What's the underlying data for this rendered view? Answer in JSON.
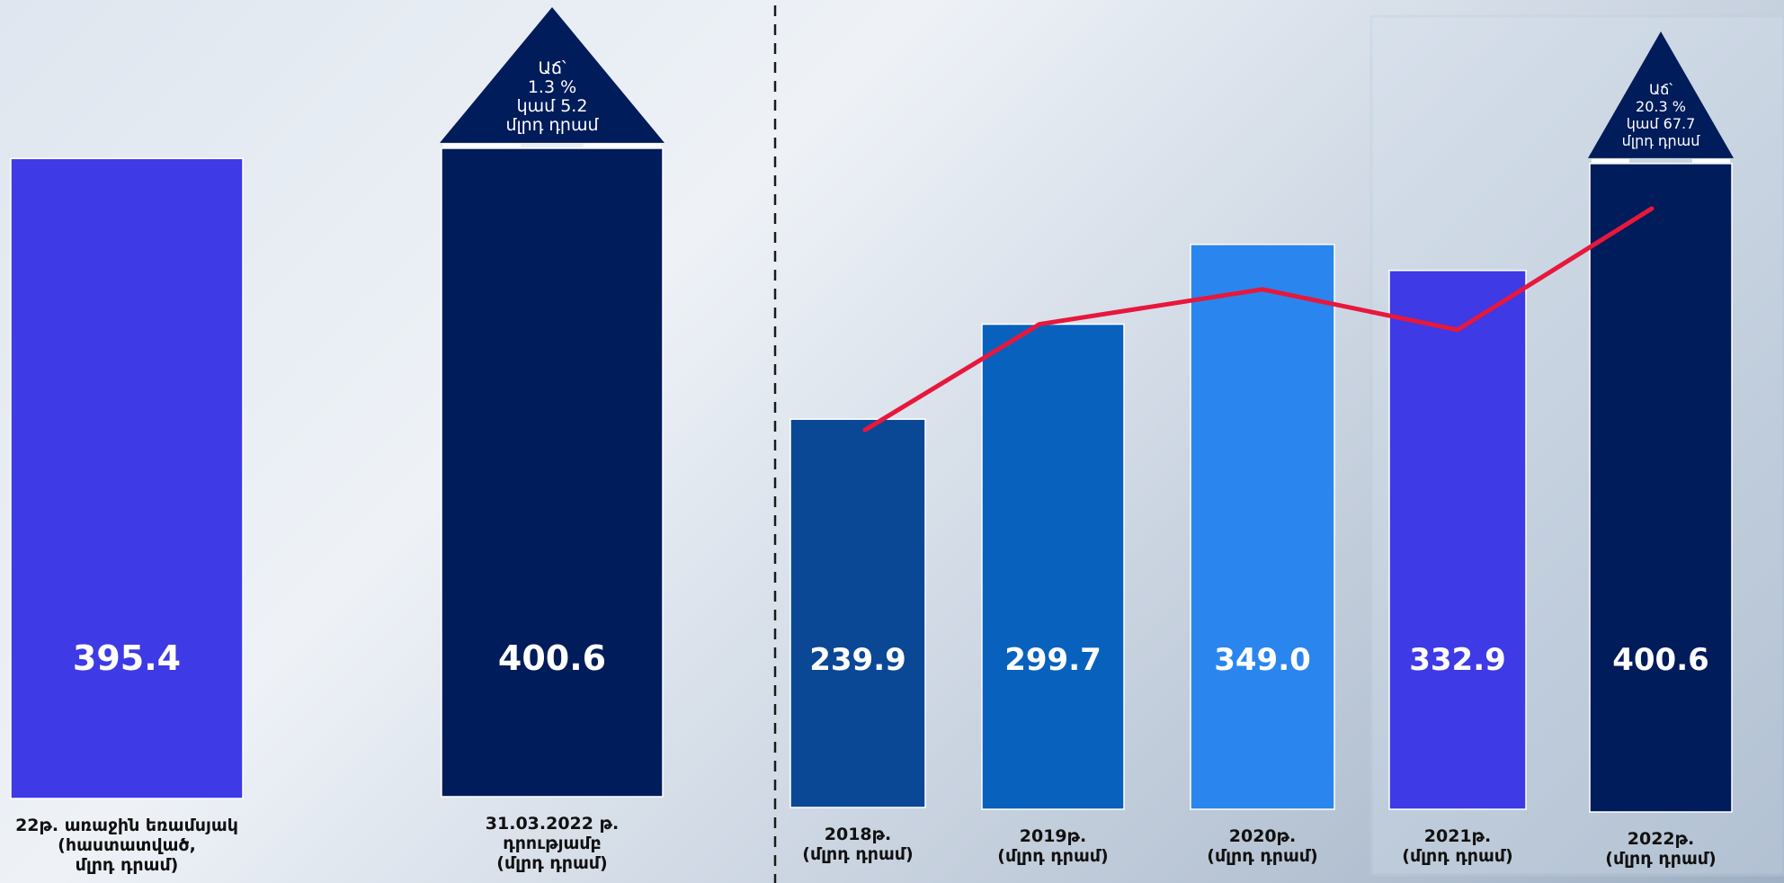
{
  "chart_data": {
    "type": "bar",
    "categories": [
      [
        "22թ. առաջին եռամսյակ",
        "(հաստատված,",
        "մլրդ դրամ)"
      ],
      [
        "31.03.2022 թ.",
        "դրությամբ",
        "(մլրդ դրամ)"
      ],
      [
        "2018թ.",
        "(մլրդ դրամ)"
      ],
      [
        "2019թ.",
        "(մլրդ դրամ)"
      ],
      [
        "2020թ.",
        "(մլրդ դրամ)"
      ],
      [
        "2021թ.",
        "(մլրդ դրամ)"
      ],
      [
        "2022թ.",
        "(մլրդ դրամ)"
      ]
    ],
    "values": [
      395.4,
      400.6,
      239.9,
      299.7,
      349.0,
      332.9,
      400.6
    ],
    "value_labels": [
      "395.4",
      "400.6",
      "239.9",
      "299.7",
      "349.0",
      "332.9",
      "400.6"
    ],
    "bar_colors": [
      "#3d3ae6",
      "#001c5a",
      "#0a4896",
      "#0862bd",
      "#2a86ee",
      "#3d3ae6",
      "#001c5a"
    ],
    "ylim": [
      0,
      410
    ],
    "line_series_categories": [
      2,
      3,
      4,
      5,
      6
    ],
    "line_color": "#e8173c",
    "callouts": [
      {
        "bar": 1,
        "lines": [
          "Աճ՝",
          "1.3 %",
          "կամ 5.2",
          "մլրդ դրամ"
        ]
      },
      {
        "bar": 6,
        "lines": [
          "Աճ՝",
          "20.3 %",
          "կամ 67.7",
          "մլրդ դրամ"
        ]
      }
    ],
    "callout_color": "#001c5a",
    "separator_after_bar": 1
  }
}
